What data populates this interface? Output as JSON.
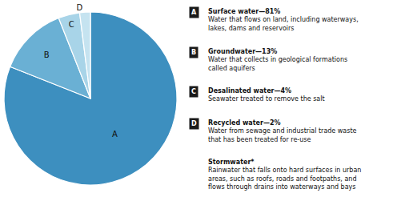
{
  "chart_data": {
    "type": "pie",
    "categories": [
      "A",
      "B",
      "C",
      "D"
    ],
    "values": [
      81,
      13,
      4,
      2
    ],
    "colors": [
      "#3d8fbf",
      "#6ab0d4",
      "#a8d4e8",
      "#c5e3f0"
    ],
    "annotations": [
      {
        "label": "A",
        "title": "Surface water—81%",
        "text": "Water that flows on land, including waterways,\nlakes, dams and reservoirs"
      },
      {
        "label": "B",
        "title": "Groundwater—13%",
        "text": "Water that collects in geological formations\ncalled aquifers"
      },
      {
        "label": "C",
        "title": "Desalinated water—4%",
        "text": "Seawater treated to remove the salt"
      },
      {
        "label": "D",
        "title": "Recycled water—2%",
        "text": "Water from sewage and industrial trade waste\nthat has been treated for re-use"
      },
      {
        "title": "Stormwater*",
        "text": "Rainwater that falls onto hard surfaces in urban\nareas, such as roofs, roads and footpaths, and\nflows through drains into waterways and bays"
      }
    ]
  }
}
